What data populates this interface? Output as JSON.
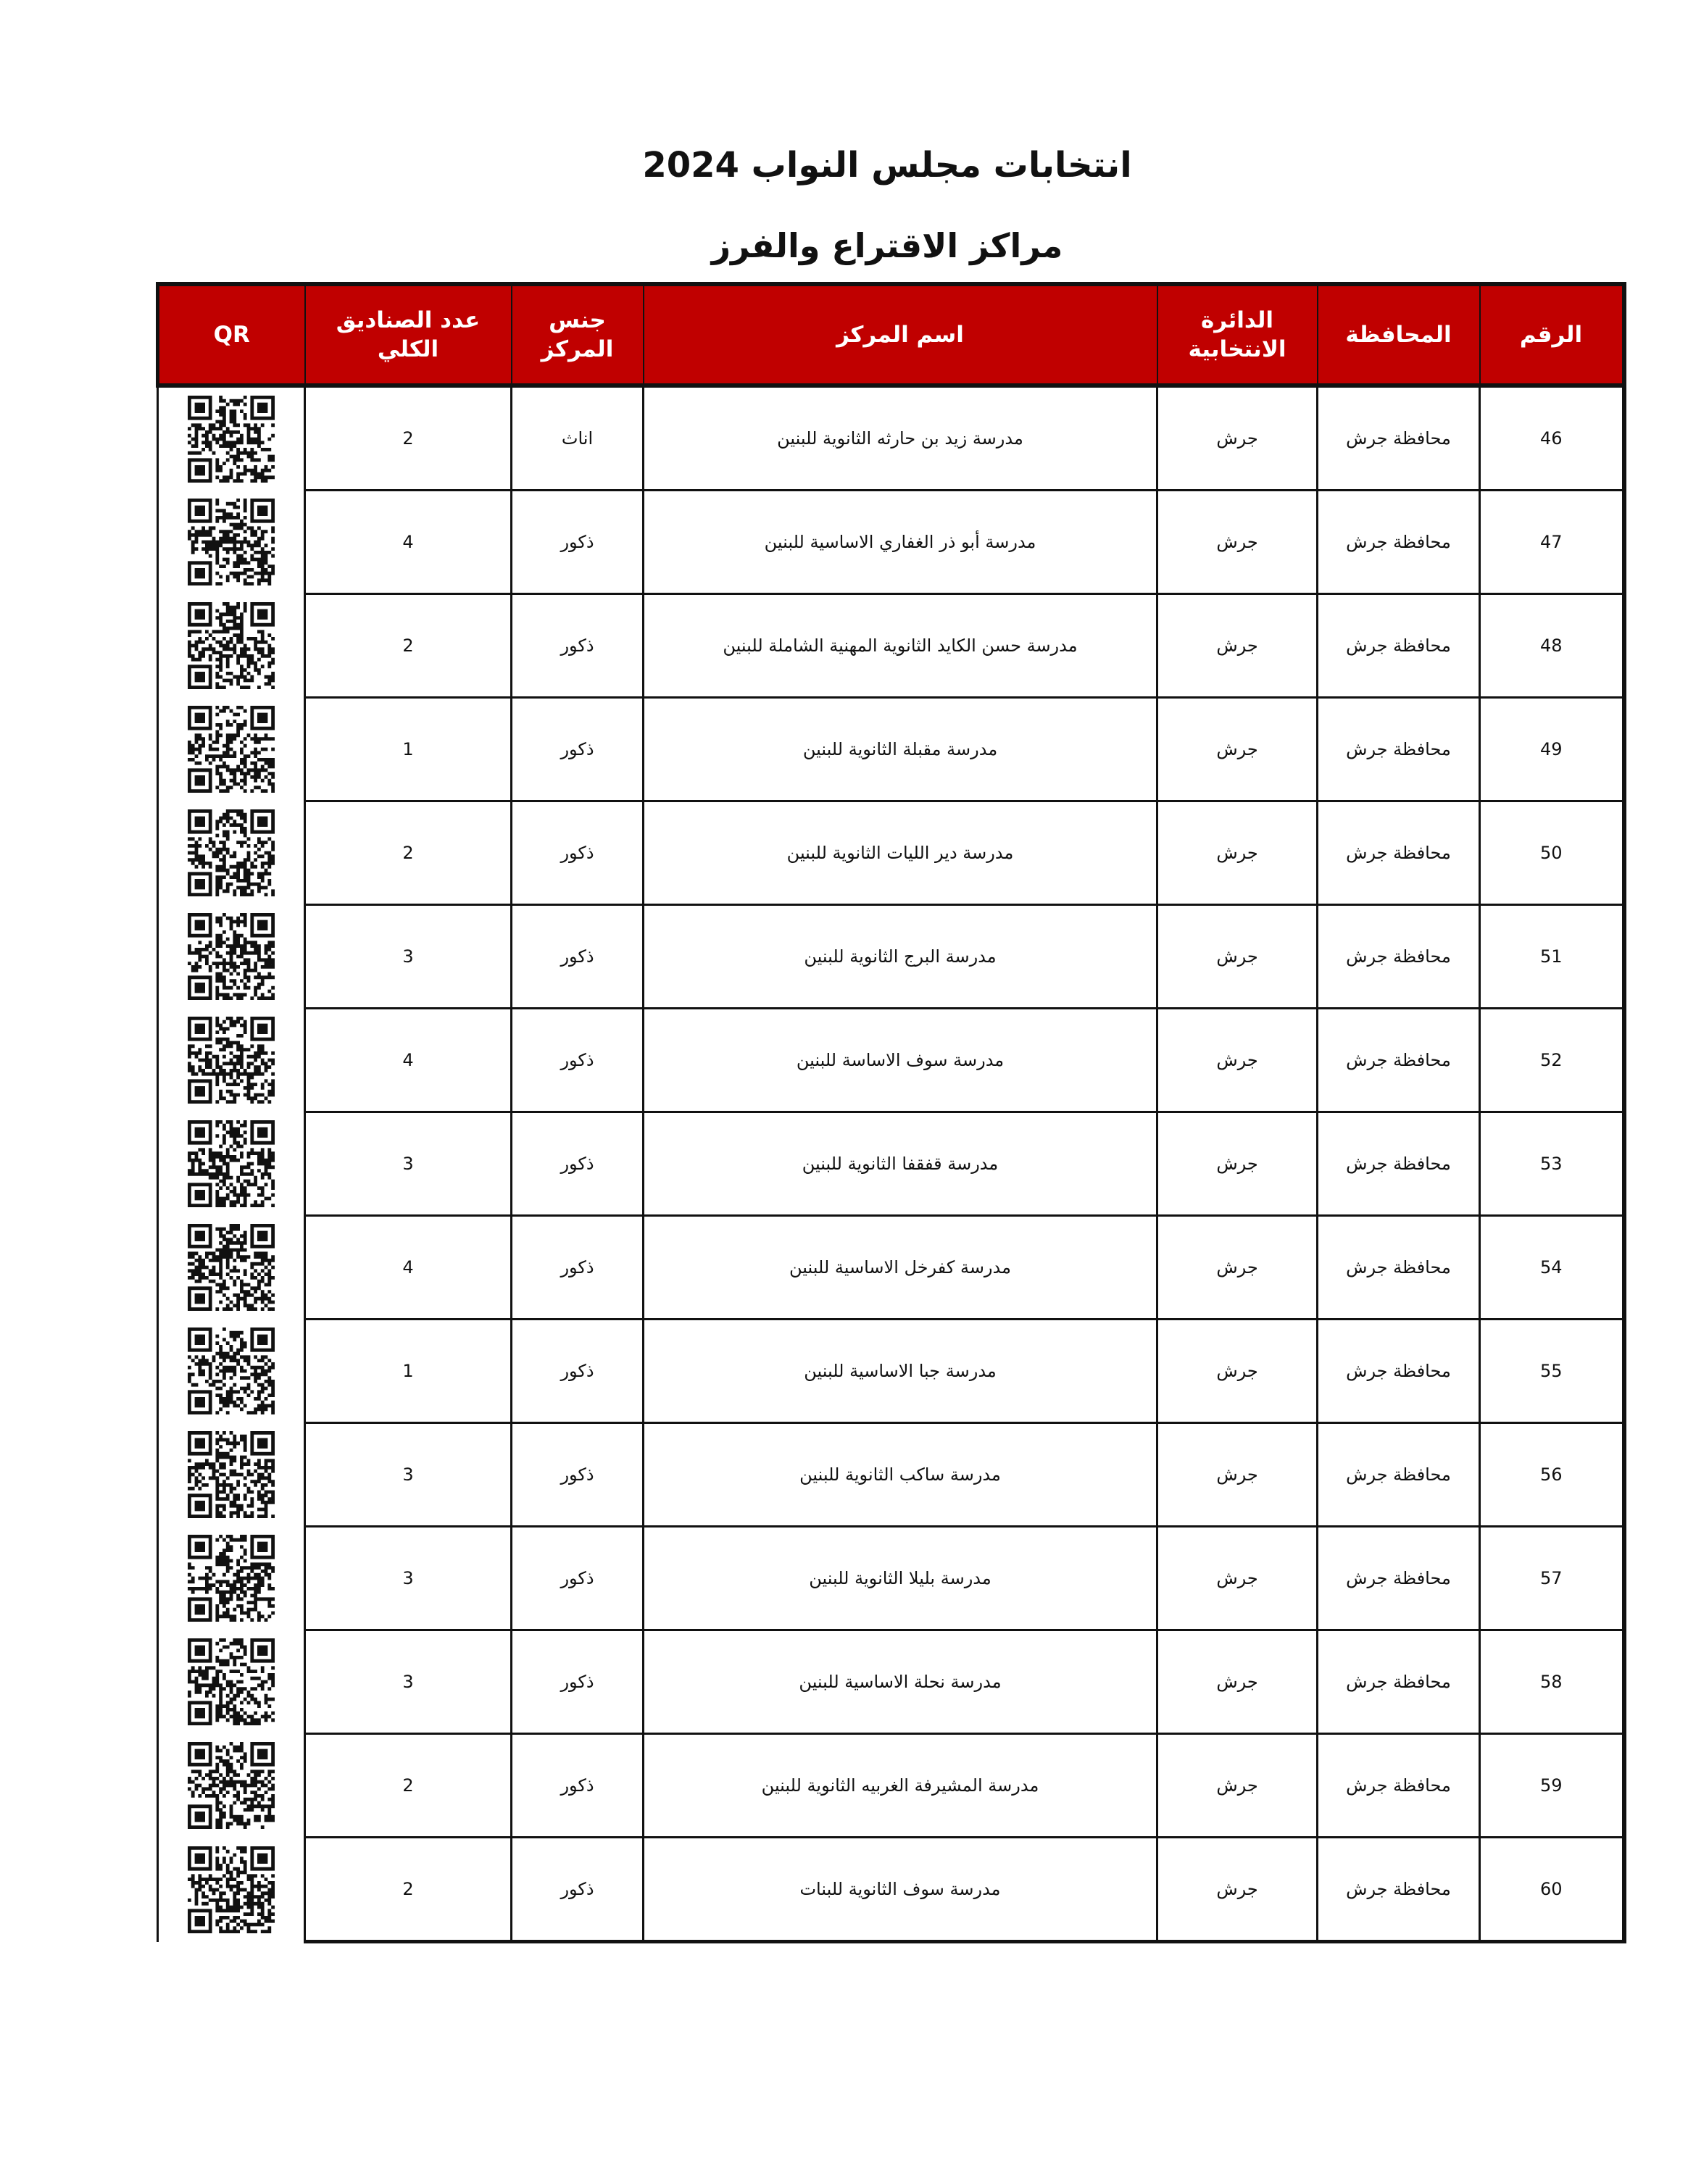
{
  "title": "انتخابات مجلس النواب 2024",
  "subtitle": "مراكز الاقتراع والفرز",
  "colors": {
    "header_bg": "#c00000",
    "header_text": "#ffffff"
  },
  "columns": {
    "number": "الرقم",
    "governorate": "المحافظة",
    "district": "الدائرة الانتخابية",
    "center_name": "اسم المركز",
    "center_gender": "جنس المركز",
    "total_boxes": "عدد الصناديق الكلي",
    "qr": "QR"
  },
  "rows": [
    {
      "number": "46",
      "governorate": "محافظة جرش",
      "district": "جرش",
      "center_name": "مدرسة زيد بن حارثه الثانوية للبنين",
      "center_gender": "اناث",
      "total_boxes": "2",
      "qr": "qr-code-icon"
    },
    {
      "number": "47",
      "governorate": "محافظة جرش",
      "district": "جرش",
      "center_name": "مدرسة أبو ذر الغفاري الاساسية للبنين",
      "center_gender": "ذكور",
      "total_boxes": "4",
      "qr": "qr-code-icon"
    },
    {
      "number": "48",
      "governorate": "محافظة جرش",
      "district": "جرش",
      "center_name": "مدرسة حسن الكايد الثانوية المهنية الشاملة للبنين",
      "center_gender": "ذكور",
      "total_boxes": "2",
      "qr": "qr-code-icon"
    },
    {
      "number": "49",
      "governorate": "محافظة جرش",
      "district": "جرش",
      "center_name": "مدرسة مقبلة الثانوية للبنين",
      "center_gender": "ذكور",
      "total_boxes": "1",
      "qr": "qr-code-icon"
    },
    {
      "number": "50",
      "governorate": "محافظة جرش",
      "district": "جرش",
      "center_name": "مدرسة دير الليات الثانوية للبنين",
      "center_gender": "ذكور",
      "total_boxes": "2",
      "qr": "qr-code-icon"
    },
    {
      "number": "51",
      "governorate": "محافظة جرش",
      "district": "جرش",
      "center_name": "مدرسة البرج الثانوية للبنين",
      "center_gender": "ذكور",
      "total_boxes": "3",
      "qr": "qr-code-icon"
    },
    {
      "number": "52",
      "governorate": "محافظة جرش",
      "district": "جرش",
      "center_name": "مدرسة سوف الاساسة للبنين",
      "center_gender": "ذكور",
      "total_boxes": "4",
      "qr": "qr-code-icon"
    },
    {
      "number": "53",
      "governorate": "محافظة جرش",
      "district": "جرش",
      "center_name": "مدرسة قفقفا الثانوية للبنين",
      "center_gender": "ذكور",
      "total_boxes": "3",
      "qr": "qr-code-icon"
    },
    {
      "number": "54",
      "governorate": "محافظة جرش",
      "district": "جرش",
      "center_name": "مدرسة كفرخل الاساسية للبنين",
      "center_gender": "ذكور",
      "total_boxes": "4",
      "qr": "qr-code-icon"
    },
    {
      "number": "55",
      "governorate": "محافظة جرش",
      "district": "جرش",
      "center_name": "مدرسة جبا الاساسية للبنين",
      "center_gender": "ذكور",
      "total_boxes": "1",
      "qr": "qr-code-icon"
    },
    {
      "number": "56",
      "governorate": "محافظة جرش",
      "district": "جرش",
      "center_name": "مدرسة ساكب الثانوية للبنين",
      "center_gender": "ذكور",
      "total_boxes": "3",
      "qr": "qr-code-icon"
    },
    {
      "number": "57",
      "governorate": "محافظة جرش",
      "district": "جرش",
      "center_name": "مدرسة بليلا الثانوية للبنين",
      "center_gender": "ذكور",
      "total_boxes": "3",
      "qr": "qr-code-icon"
    },
    {
      "number": "58",
      "governorate": "محافظة جرش",
      "district": "جرش",
      "center_name": "مدرسة نحلة الاساسية للبنين",
      "center_gender": "ذكور",
      "total_boxes": "3",
      "qr": "qr-code-icon"
    },
    {
      "number": "59",
      "governorate": "محافظة جرش",
      "district": "جرش",
      "center_name": "مدرسة المشيرفة الغربيه الثانوية للبنين",
      "center_gender": "ذكور",
      "total_boxes": "2",
      "qr": "qr-code-icon"
    },
    {
      "number": "60",
      "governorate": "محافظة جرش",
      "district": "جرش",
      "center_name": "مدرسة سوف الثانوية للبنات",
      "center_gender": "ذكور",
      "total_boxes": "2",
      "qr": "qr-code-icon"
    }
  ]
}
